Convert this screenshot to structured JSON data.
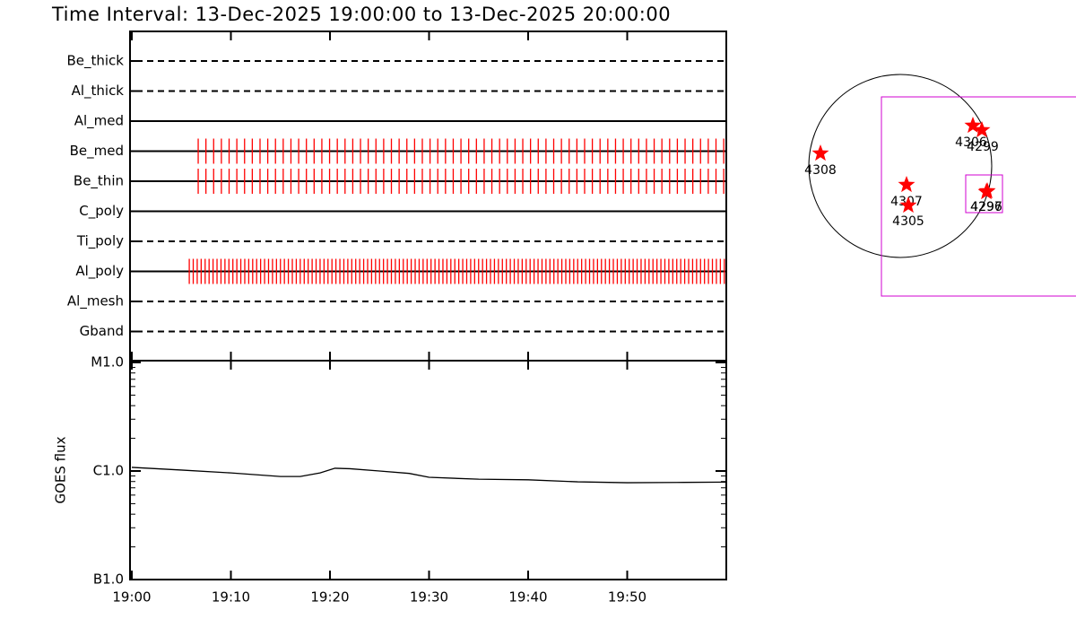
{
  "title": "Time Interval: 13-Dec-2025 19:00:00 to 13-Dec-2025 20:00:00",
  "chart_data": [
    {
      "type": "filter-timeline",
      "xlim": [
        0,
        60
      ],
      "rows": [
        {
          "name": "Be_thick",
          "style": "dashed"
        },
        {
          "name": "Al_thick",
          "style": "dashed"
        },
        {
          "name": "Al_med",
          "style": "solid"
        },
        {
          "name": "Be_med",
          "style": "solid",
          "color": "#ff0000",
          "ticks": {
            "start": 6.7,
            "end": 60,
            "interval": 0.78
          }
        },
        {
          "name": "Be_thin",
          "style": "solid",
          "color": "#ff0000",
          "ticks": {
            "start": 6.7,
            "end": 60,
            "interval": 0.78
          }
        },
        {
          "name": "C_poly",
          "style": "solid"
        },
        {
          "name": "Ti_poly",
          "style": "dashed"
        },
        {
          "name": "Al_poly",
          "style": "solid",
          "color": "#ff0000",
          "ticks": {
            "start": 5.8,
            "end": 60,
            "interval": 0.4
          }
        },
        {
          "name": "Al_mesh",
          "style": "dashed"
        },
        {
          "name": "Gband",
          "style": "dashed"
        }
      ]
    },
    {
      "type": "line",
      "y_label": "GOES flux",
      "log_y": true,
      "xlim": [
        0,
        60
      ],
      "ylim": [
        1e-07,
        1e-05
      ],
      "xticks": [
        {
          "value": 0,
          "label": "19:00"
        },
        {
          "value": 10,
          "label": "19:10"
        },
        {
          "value": 20,
          "label": "19:20"
        },
        {
          "value": 30,
          "label": "19:30"
        },
        {
          "value": 40,
          "label": "19:40"
        },
        {
          "value": 50,
          "label": "19:50"
        }
      ],
      "yticks": [
        {
          "value": 1e-07,
          "label": "B1.0"
        },
        {
          "value": 1e-06,
          "label": "C1.0"
        },
        {
          "value": 1e-05,
          "label": "M1.0"
        }
      ],
      "x": [
        0,
        5,
        10,
        15,
        17,
        19,
        20.5,
        22,
        25,
        28,
        30,
        35,
        40,
        45,
        50,
        55,
        60
      ],
      "values": [
        1.08e-06,
        1.02e-06,
        9.6e-07,
        8.9e-07,
        8.9e-07,
        9.6e-07,
        1.06e-06,
        1.05e-06,
        1e-06,
        9.5e-07,
        8.75e-07,
        8.4e-07,
        8.3e-07,
        7.95e-07,
        7.8e-07,
        7.85e-07,
        7.9e-07
      ],
      "color": "#000000"
    }
  ],
  "map": {
    "regions": [
      {
        "label": "4308"
      },
      {
        "label": "4306"
      },
      {
        "label": "4299"
      },
      {
        "label": "4307"
      },
      {
        "label": "4305"
      },
      {
        "label": "4296"
      },
      {
        "label": "4297"
      }
    ]
  }
}
